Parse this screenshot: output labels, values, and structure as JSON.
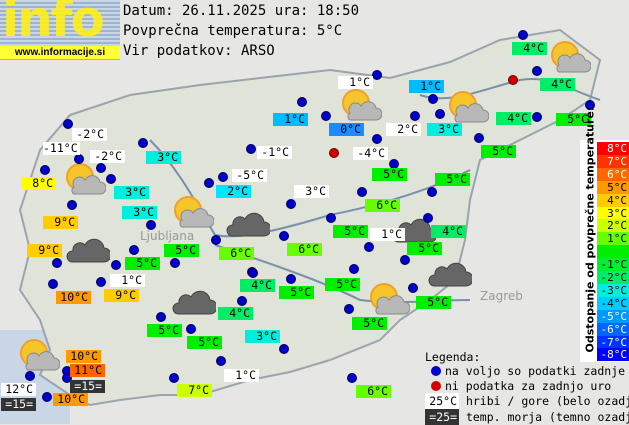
{
  "header": {
    "logo_word": "info",
    "logo_url": "www.informacije.si",
    "date_line": "Datum: 26.11.2025 ura: 18:50",
    "avg_temp_line": "Povprečna temperatura: 5°C",
    "source_line": "Vir podatkov: ARSO"
  },
  "stations": [
    {
      "text": "-2°C",
      "bg": "#ffffff"
    },
    {
      "text": "-11°C",
      "bg": "#ffffff"
    },
    {
      "text": "-2°C",
      "bg": "#ffffff"
    },
    {
      "text": "8°C",
      "bg": "#ffff00"
    },
    {
      "text": "3°C",
      "bg": "#00eedd"
    },
    {
      "text": "3°C",
      "bg": "#00eedd"
    },
    {
      "text": "3°C",
      "bg": "#00eedd"
    },
    {
      "text": "9°C",
      "bg": "#ffcc00"
    },
    {
      "text": "9°C",
      "bg": "#ffcc00"
    },
    {
      "text": "5°C",
      "bg": "#00ee00"
    },
    {
      "text": "5°C",
      "bg": "#00ee00"
    },
    {
      "text": "1°C",
      "bg": "#ffffff"
    },
    {
      "text": "1°C",
      "bg": "#00bbff"
    },
    {
      "text": "0°C",
      "bg": "#1a8cff"
    },
    {
      "text": "2°C",
      "bg": "#ffffff"
    },
    {
      "text": "-1°C",
      "bg": "#ffffff"
    },
    {
      "text": "-4°C",
      "bg": "#ffffff"
    },
    {
      "text": "-5°C",
      "bg": "#ffffff"
    },
    {
      "text": "2°C",
      "bg": "#00e5ff"
    },
    {
      "text": "5°C",
      "bg": "#00ee00"
    },
    {
      "text": "3°C",
      "bg": "#ffffff"
    },
    {
      "text": "6°C",
      "bg": "#66ff00"
    },
    {
      "text": "4°C",
      "bg": "#00ee66"
    },
    {
      "text": "4°C",
      "bg": "#00ee66"
    },
    {
      "text": "1°C",
      "bg": "#00bbff"
    },
    {
      "text": "3°C",
      "bg": "#00eedd"
    },
    {
      "text": "4°C",
      "bg": "#00ee66"
    },
    {
      "text": "5°C",
      "bg": "#00ee00"
    },
    {
      "text": "5°C",
      "bg": "#00ee00"
    },
    {
      "text": "5°C",
      "bg": "#00ee00"
    },
    {
      "text": "5°C",
      "bg": "#00ee00"
    },
    {
      "text": "1°C",
      "bg": "#ffffff"
    },
    {
      "text": "4°C",
      "bg": "#00ee66"
    },
    {
      "text": "6°C",
      "bg": "#66ff00"
    },
    {
      "text": "6°C",
      "bg": "#66ff00"
    },
    {
      "text": "5°C",
      "bg": "#00ee00"
    },
    {
      "text": "4°C",
      "bg": "#00ee66"
    },
    {
      "text": "5°C",
      "bg": "#00ee00"
    },
    {
      "text": "5°C",
      "bg": "#00ee00"
    },
    {
      "text": "5°C",
      "bg": "#00ee00"
    },
    {
      "text": "4°C",
      "bg": "#00ee66"
    },
    {
      "text": "5°C",
      "bg": "#00ee00"
    },
    {
      "text": "3°C",
      "bg": "#00eedd"
    },
    {
      "text": "10°C",
      "bg": "#ff9900"
    },
    {
      "text": "1°C",
      "bg": "#ffffff"
    },
    {
      "text": "9°C",
      "bg": "#ffcc00"
    },
    {
      "text": "5°C",
      "bg": "#00ee00"
    },
    {
      "text": "5°C",
      "bg": "#00ee00"
    },
    {
      "text": "10°C",
      "bg": "#ff9900"
    },
    {
      "text": "11°C",
      "bg": "#ff6600"
    },
    {
      "text": "=15=",
      "bg": "#333333"
    },
    {
      "text": "12°C",
      "bg": "#ffffff"
    },
    {
      "text": "=15=",
      "bg": "#333333"
    },
    {
      "text": "10°C",
      "bg": "#ff9900"
    },
    {
      "text": "1°C",
      "bg": "#ffffff"
    },
    {
      "text": "7°C",
      "bg": "#ccff00"
    },
    {
      "text": "6°C",
      "bg": "#66ff00"
    }
  ],
  "scale": {
    "title": "Odstopanje od povprečne temperature:",
    "rows": [
      {
        "label": "8°C",
        "color": "#ff0000"
      },
      {
        "label": "7°C",
        "color": "#ff3300"
      },
      {
        "label": "6°C",
        "color": "#ff6600"
      },
      {
        "label": "5°C",
        "color": "#ff9900"
      },
      {
        "label": "4°C",
        "color": "#ffcc00"
      },
      {
        "label": "3°C",
        "color": "#ffff00"
      },
      {
        "label": "2°C",
        "color": "#ccff00"
      },
      {
        "label": "1°C",
        "color": "#66ff00"
      },
      {
        "label": "",
        "color": "#00ee00"
      },
      {
        "label": "-1°C",
        "color": "#00ee33"
      },
      {
        "label": "-2°C",
        "color": "#00ee66"
      },
      {
        "label": "-3°C",
        "color": "#00eedd"
      },
      {
        "label": "-4°C",
        "color": "#00ccff"
      },
      {
        "label": "-5°C",
        "color": "#0099ff"
      },
      {
        "label": "-6°C",
        "color": "#0066ff"
      },
      {
        "label": "-7°C",
        "color": "#0033ff"
      },
      {
        "label": "-8°C",
        "color": "#0000ff"
      }
    ]
  },
  "legend": {
    "title": "Legenda:",
    "available": "na voljo so podatki zadnje ure",
    "missing": "ni podatka za zadnjo uro",
    "mountain_sample": "25°C",
    "mountain_text": "hribi / gore (belo ozadje)",
    "sea_sample": "=25=",
    "sea_text": "temp. morja (temno ozadje)",
    "available_color": "#0000cc",
    "missing_color": "#d40000"
  },
  "map_labels": {
    "zagreb": "Zagreb",
    "ljubljana": "Ljubljana"
  }
}
